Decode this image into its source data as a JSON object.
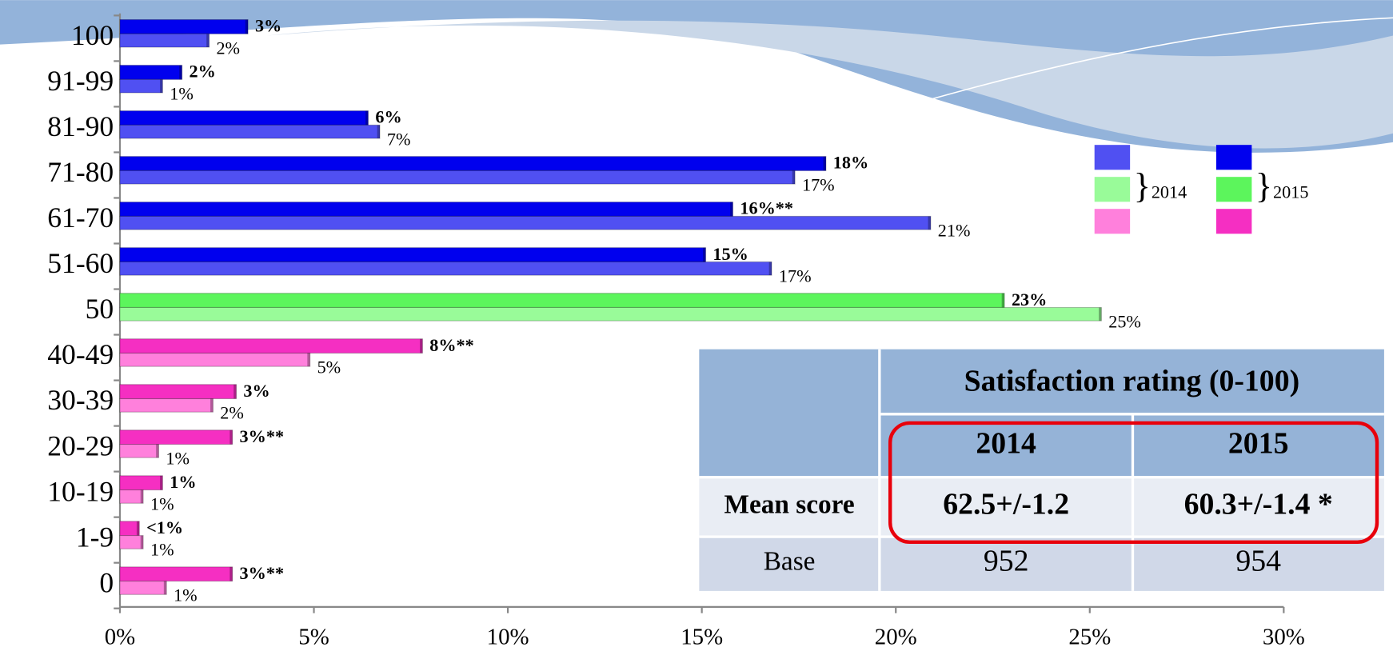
{
  "chart_data": {
    "type": "hbar",
    "categories": [
      "100",
      "91-99",
      "81-90",
      "71-80",
      "61-70",
      "51-60",
      "50",
      "40-49",
      "30-39",
      "20-29",
      "10-19",
      "1-9",
      "0"
    ],
    "series": [
      {
        "name": "2015",
        "colors": [
          "#0000ee",
          "#0000ee",
          "#0000ee",
          "#0000ee",
          "#0000ee",
          "#0000ee",
          "#5cf55c",
          "#f52fc2",
          "#f52fc2",
          "#f52fc2",
          "#f52fc2",
          "#f52fc2",
          "#f52fc2"
        ],
        "values": [
          3.3,
          1.6,
          6.4,
          18.2,
          15.8,
          15.1,
          22.8,
          7.8,
          3.0,
          2.9,
          1.1,
          0.5,
          2.9
        ],
        "value_labels": [
          "3%",
          "2%",
          "6%",
          "18%",
          "16%**",
          "15%",
          "23%",
          "8%**",
          "3%",
          "3%**",
          "1%",
          "<1%",
          "3%**"
        ]
      },
      {
        "name": "2014",
        "colors": [
          "#5050f2",
          "#5050f2",
          "#5050f2",
          "#5050f2",
          "#5050f2",
          "#5050f2",
          "#99fb99",
          "#ff80dc",
          "#ff80dc",
          "#ff80dc",
          "#ff80dc",
          "#ff80dc",
          "#ff80dc"
        ],
        "values": [
          2.3,
          1.1,
          6.7,
          17.4,
          20.9,
          16.8,
          25.3,
          4.9,
          2.4,
          1.0,
          0.6,
          0.6,
          1.2
        ],
        "value_labels": [
          "2%",
          "1%",
          "7%",
          "17%",
          "21%",
          "17%",
          "25%",
          "5%",
          "2%",
          "1%",
          "1%",
          "1%",
          "1%"
        ]
      }
    ],
    "xlim": [
      0,
      30
    ],
    "xticks": [
      {
        "value": 0,
        "label": "0%"
      },
      {
        "value": 5,
        "label": "5%"
      },
      {
        "value": 10,
        "label": "10%"
      },
      {
        "value": 15,
        "label": "15%"
      },
      {
        "value": 20,
        "label": "20%"
      },
      {
        "value": 25,
        "label": "25%"
      },
      {
        "value": 30,
        "label": "30%"
      }
    ]
  },
  "table": {
    "header": "Satisfaction rating (0-100)",
    "columns": [
      "2014",
      "2015"
    ],
    "rows": [
      [
        "Mean score",
        "62.5+/-1.2",
        "60.3+/-1.4 *"
      ],
      [
        "Base",
        "952",
        "954"
      ]
    ]
  }
}
